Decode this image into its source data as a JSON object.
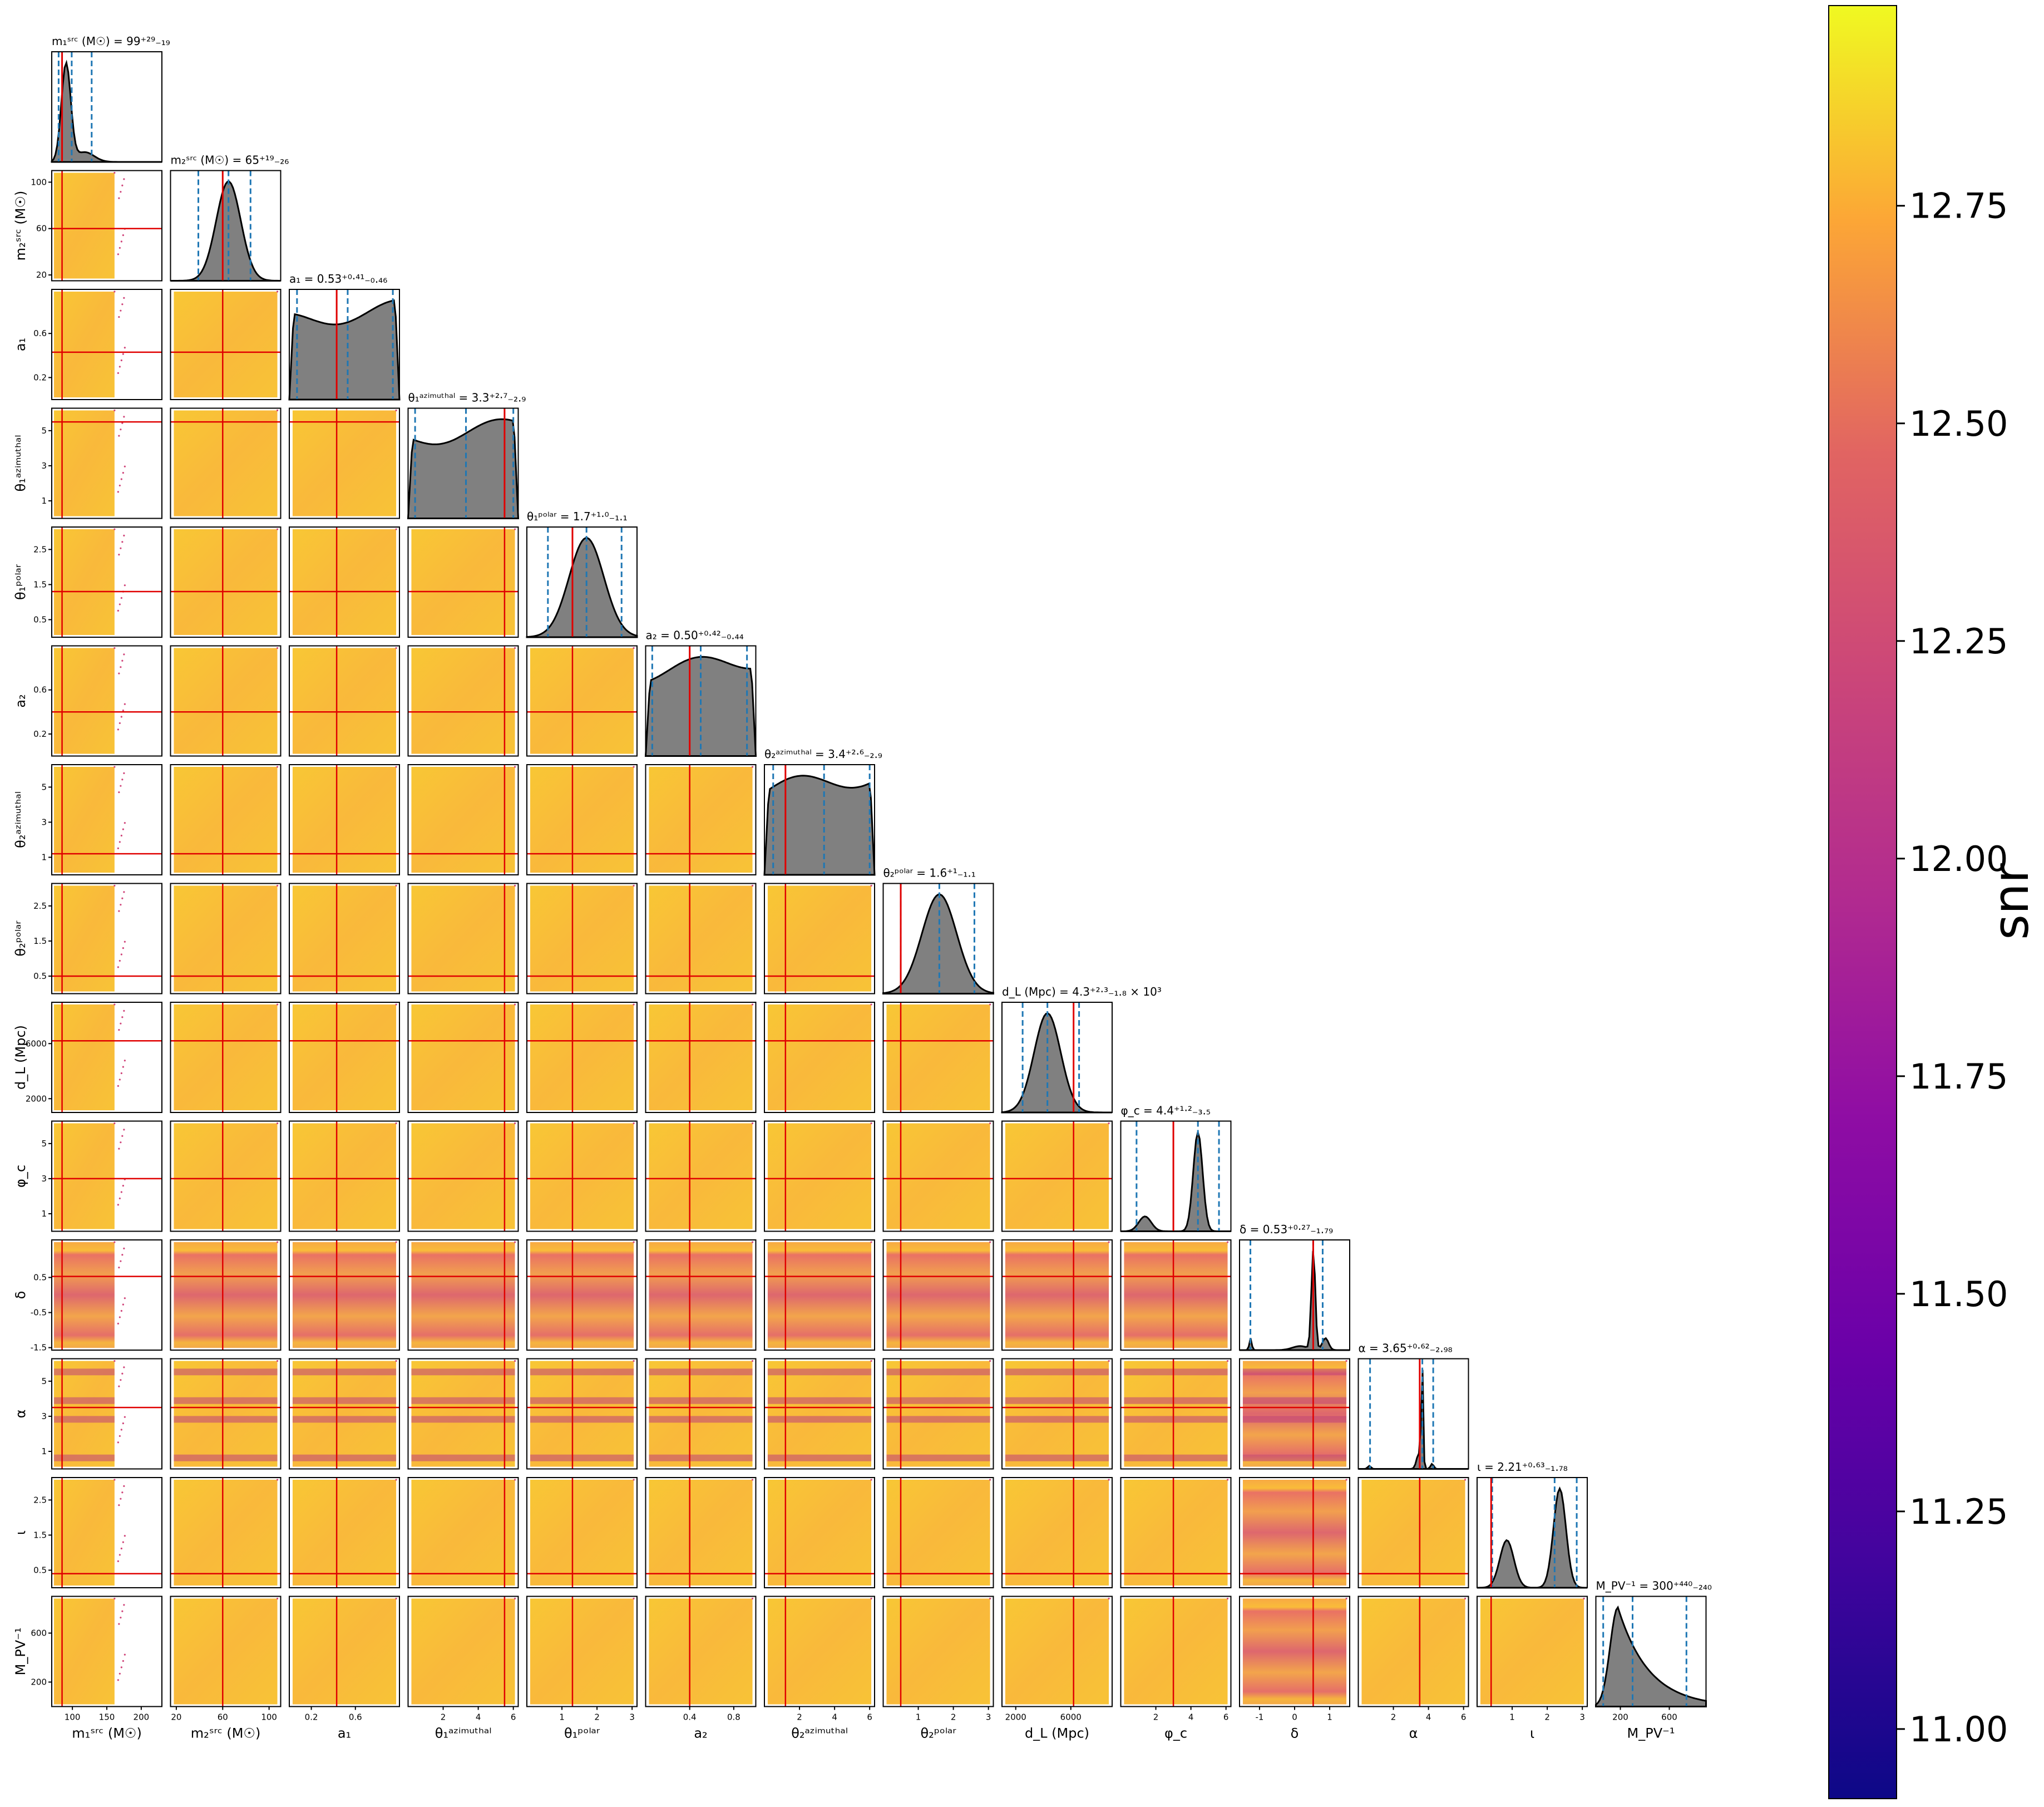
{
  "chart_data": {
    "type": "corner",
    "colorbar": {
      "label": "snr",
      "ticks": [
        "11.00",
        "11.25",
        "11.50",
        "11.75",
        "12.00",
        "12.25",
        "12.50",
        "12.75"
      ],
      "range": [
        10.92,
        12.98
      ],
      "colormap": "plasma"
    },
    "parameters": [
      {
        "key": "m1",
        "label": "m₁ˢʳᶜ (M☉)",
        "title": "m₁ˢʳᶜ (M☉) = 99⁺²⁹₋₁₉",
        "range": [
          70,
          230
        ],
        "ticks": [
          100,
          150,
          200
        ],
        "truth": 85,
        "median": 99,
        "lo": 80,
        "hi": 128
      },
      {
        "key": "m2",
        "label": "m₂ˢʳᶜ (M☉)",
        "title": "m₂ˢʳᶜ (M☉) = 65⁺¹⁹₋₂₆",
        "range": [
          15,
          110
        ],
        "ticks": [
          20,
          60,
          100
        ],
        "truth": 60,
        "median": 65,
        "lo": 39,
        "hi": 84
      },
      {
        "key": "a1",
        "label": "a₁",
        "title": "a₁ = 0.53⁺⁰·⁴¹₋₀.₄₆",
        "range": [
          0,
          1
        ],
        "ticks": [
          0.2,
          0.6
        ],
        "truth": 0.43,
        "median": 0.53,
        "lo": 0.07,
        "hi": 0.94
      },
      {
        "key": "th1a",
        "label": "θ₁ᵃᶻⁱᵐᵘᵗʰᵃˡ",
        "title": "θ₁ᵃᶻⁱᵐᵘᵗʰᵃˡ = 3.3⁺²·⁷₋₂.₉",
        "range": [
          0,
          6.28
        ],
        "ticks": [
          1,
          3,
          5
        ],
        "ticksX": [
          2,
          4,
          6
        ],
        "truth": 5.5,
        "median": 3.3,
        "lo": 0.4,
        "hi": 6.0
      },
      {
        "key": "th1p",
        "label": "θ₁ᵖᵒˡᵃʳ",
        "title": "θ₁ᵖᵒˡᵃʳ = 1.7⁺¹·⁰₋₁.₁",
        "range": [
          0,
          3.14
        ],
        "ticks": [
          0.5,
          1.5,
          2.5
        ],
        "ticksX": [
          1,
          2,
          3
        ],
        "truth": 1.3,
        "median": 1.7,
        "lo": 0.6,
        "hi": 2.7
      },
      {
        "key": "a2",
        "label": "a₂",
        "title": "a₂ = 0.50⁺⁰·⁴²₋₀.₄₄",
        "range": [
          0,
          1
        ],
        "ticks": [
          0.2,
          0.6
        ],
        "ticksX": [
          0.4,
          0.8
        ],
        "truth": 0.4,
        "median": 0.5,
        "lo": 0.06,
        "hi": 0.92
      },
      {
        "key": "th2a",
        "label": "θ₂ᵃᶻⁱᵐᵘᵗʰᵃˡ",
        "title": "θ₂ᵃᶻⁱᵐᵘᵗʰᵃˡ = 3.4⁺²·⁶₋₂.₉",
        "range": [
          0,
          6.28
        ],
        "ticks": [
          1,
          3,
          5
        ],
        "ticksX": [
          2,
          4,
          6
        ],
        "truth": 1.2,
        "median": 3.4,
        "lo": 0.5,
        "hi": 6.0
      },
      {
        "key": "th2p",
        "label": "θ₂ᵖᵒˡᵃʳ",
        "title": "θ₂ᵖᵒˡᵃʳ = 1.6⁺¹₋₁.₁",
        "range": [
          0,
          3.14
        ],
        "ticks": [
          0.5,
          1.5,
          2.5
        ],
        "ticksX": [
          1,
          2,
          3
        ],
        "truth": 0.5,
        "median": 1.6,
        "lo": 0.5,
        "hi": 2.6
      },
      {
        "key": "dl",
        "label": "d_L (Mpc)",
        "title": "d_L (Mpc) = 4.3⁺²·³₋₁.₈ × 10³",
        "range": [
          1000,
          9000
        ],
        "ticks": [
          2000,
          6000
        ],
        "truth": 6200,
        "median": 4300,
        "lo": 2500,
        "hi": 6600
      },
      {
        "key": "phic",
        "label": "φ_c",
        "title": "φ_c = 4.4⁺¹·²₋₃.₅",
        "range": [
          0,
          6.28
        ],
        "ticks": [
          1,
          3,
          5
        ],
        "ticksX": [
          2,
          4,
          6
        ],
        "truth": 3.0,
        "median": 4.4,
        "lo": 0.9,
        "hi": 5.6
      },
      {
        "key": "delta",
        "label": "δ",
        "title": "δ = 0.53⁺⁰·²⁷₋₁.₇₉",
        "range": [
          -1.57,
          1.57
        ],
        "ticks": [
          -1.5,
          -0.5,
          0.5
        ],
        "ticksX": [
          -1,
          0,
          1
        ],
        "truth": 0.53,
        "median": 0.53,
        "lo": -1.26,
        "hi": 0.8
      },
      {
        "key": "alpha",
        "label": "α",
        "title": "α = 3.65⁺⁰·⁶²₋₂.₉₈",
        "range": [
          0,
          6.28
        ],
        "ticks": [
          1,
          3,
          5
        ],
        "ticksX": [
          2,
          4,
          6
        ],
        "truth": 3.5,
        "median": 3.65,
        "lo": 0.67,
        "hi": 4.27
      },
      {
        "key": "iota",
        "label": "ι",
        "title": "ι = 2.21⁺⁰·⁶³₋₁.₇₈",
        "range": [
          0,
          3.14
        ],
        "ticks": [
          0.5,
          1.5,
          2.5
        ],
        "ticksX": [
          1,
          2,
          3
        ],
        "truth": 0.4,
        "median": 2.21,
        "lo": 0.43,
        "hi": 2.84
      },
      {
        "key": "mpv",
        "label": "M_PV⁻¹",
        "title": "M_PV⁻¹ = 300⁺⁴⁴⁰₋₂₄₀",
        "range": [
          0,
          900
        ],
        "ticks": [
          200,
          600
        ],
        "truth": null,
        "median": 300,
        "lo": 60,
        "hi": 740
      }
    ]
  }
}
